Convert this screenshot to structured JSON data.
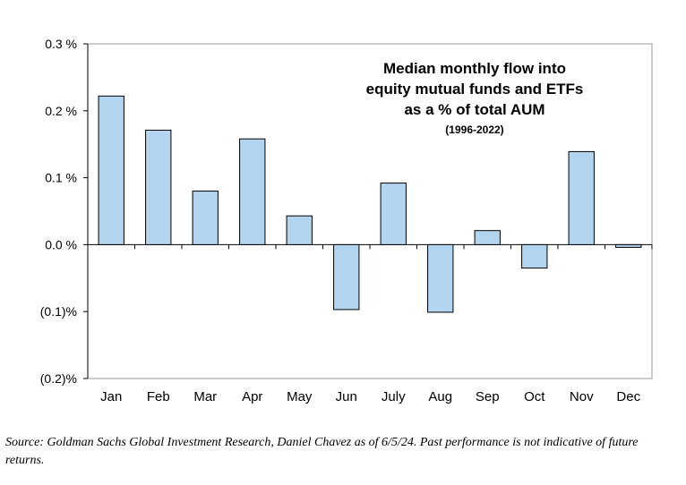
{
  "chart_data": {
    "type": "bar",
    "title_lines": [
      "Median monthly flow into",
      "equity mutual funds and ETFs",
      "as a % of total AUM"
    ],
    "subtitle": "(1996-2022)",
    "xlabel": "",
    "ylabel": "",
    "categories": [
      "Jan",
      "Feb",
      "Mar",
      "Apr",
      "May",
      "Jun",
      "July",
      "Aug",
      "Sep",
      "Oct",
      "Nov",
      "Dec"
    ],
    "values": [
      0.222,
      0.171,
      0.08,
      0.158,
      0.043,
      -0.097,
      0.092,
      -0.101,
      0.021,
      -0.035,
      0.139,
      -0.004
    ],
    "ylim": [
      -0.2,
      0.3
    ],
    "yticks": [
      0.3,
      0.2,
      0.1,
      0.0,
      -0.1,
      -0.2
    ],
    "ytick_labels": [
      "0.3 %",
      "0.2 %",
      "0.1 %",
      "0.0 %",
      "(0.1)%",
      "(0.2)%"
    ],
    "grid": false,
    "legend": "none",
    "bar_color": "#b3d4ee",
    "bar_edge_color": "#000000"
  },
  "footer": {
    "source_text": "Source: Goldman Sachs Global Investment Research, Daniel Chavez  as of 6/5/24. Past performance is not indicative of future returns."
  }
}
